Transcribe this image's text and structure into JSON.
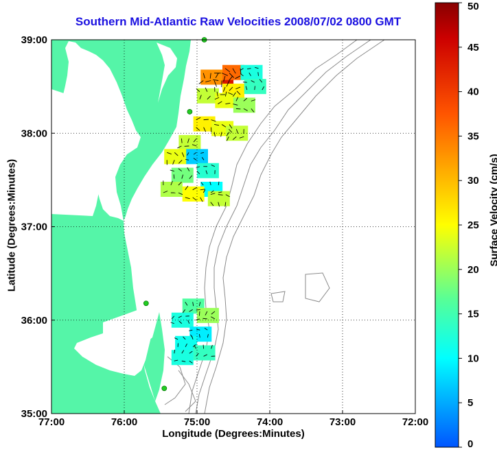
{
  "title": "Southern Mid-Atlantic Raw Velocities 2008/07/02 0800 GMT",
  "colorbar_label": "Surface Velocity (cm/s)",
  "colors": {
    "land": "#55f5a8",
    "title": "#1a10e0",
    "bathymetry": "#8a8a8a",
    "station": "#22cc22"
  },
  "chart_data": {
    "type": "heatmap",
    "xlabel": "Longitude (Degrees:Minutes)",
    "ylabel": "Latitude (Degrees:Minutes)",
    "x_ticks": [
      "77:00",
      "76:00",
      "75:00",
      "74:00",
      "73:00",
      "72:00"
    ],
    "y_ticks": [
      "39:00",
      "38:00",
      "37:00",
      "36:00",
      "35:00"
    ],
    "xlim": [
      -77,
      -72
    ],
    "ylim": [
      35,
      39
    ],
    "grid": true,
    "colorbar": {
      "min": 0,
      "max": 50,
      "ticks": [
        "0",
        "5",
        "10",
        "15",
        "20",
        "25",
        "30",
        "35",
        "40",
        "45",
        "50"
      ]
    },
    "stations": [
      {
        "lon": -74.9,
        "lat": 39.0
      },
      {
        "lon": -75.1,
        "lat": 38.23
      },
      {
        "lon": -75.7,
        "lat": 36.18
      },
      {
        "lon": -75.45,
        "lat": 35.27
      }
    ],
    "velocity_cells": [
      {
        "lon": -74.65,
        "lat": 38.6,
        "speed": 44
      },
      {
        "lon": -74.5,
        "lat": 38.65,
        "speed": 36
      },
      {
        "lon": -74.8,
        "lat": 38.6,
        "speed": 33
      },
      {
        "lon": -74.5,
        "lat": 38.45,
        "speed": 26
      },
      {
        "lon": -74.25,
        "lat": 38.65,
        "speed": 12
      },
      {
        "lon": -74.2,
        "lat": 38.5,
        "speed": 14
      },
      {
        "lon": -74.85,
        "lat": 38.4,
        "speed": 22
      },
      {
        "lon": -74.6,
        "lat": 38.35,
        "speed": 24
      },
      {
        "lon": -74.35,
        "lat": 38.3,
        "speed": 20
      },
      {
        "lon": -74.9,
        "lat": 38.1,
        "speed": 26
      },
      {
        "lon": -74.65,
        "lat": 38.05,
        "speed": 24
      },
      {
        "lon": -74.45,
        "lat": 38.0,
        "speed": 22
      },
      {
        "lon": -75.1,
        "lat": 37.9,
        "speed": 22
      },
      {
        "lon": -75.0,
        "lat": 37.75,
        "speed": 7
      },
      {
        "lon": -74.85,
        "lat": 37.6,
        "speed": 13
      },
      {
        "lon": -75.2,
        "lat": 37.55,
        "speed": 18
      },
      {
        "lon": -74.8,
        "lat": 37.4,
        "speed": 10
      },
      {
        "lon": -75.35,
        "lat": 37.4,
        "speed": 21
      },
      {
        "lon": -75.05,
        "lat": 37.35,
        "speed": 25
      },
      {
        "lon": -74.7,
        "lat": 37.3,
        "speed": 22
      },
      {
        "lon": -75.3,
        "lat": 37.75,
        "speed": 24
      },
      {
        "lon": -75.05,
        "lat": 36.15,
        "speed": 16
      },
      {
        "lon": -74.85,
        "lat": 36.05,
        "speed": 20
      },
      {
        "lon": -75.2,
        "lat": 36.0,
        "speed": 12
      },
      {
        "lon": -74.95,
        "lat": 35.85,
        "speed": 9
      },
      {
        "lon": -75.15,
        "lat": 35.75,
        "speed": 11
      },
      {
        "lon": -74.9,
        "lat": 35.65,
        "speed": 14
      },
      {
        "lon": -75.2,
        "lat": 35.6,
        "speed": 12
      }
    ]
  }
}
